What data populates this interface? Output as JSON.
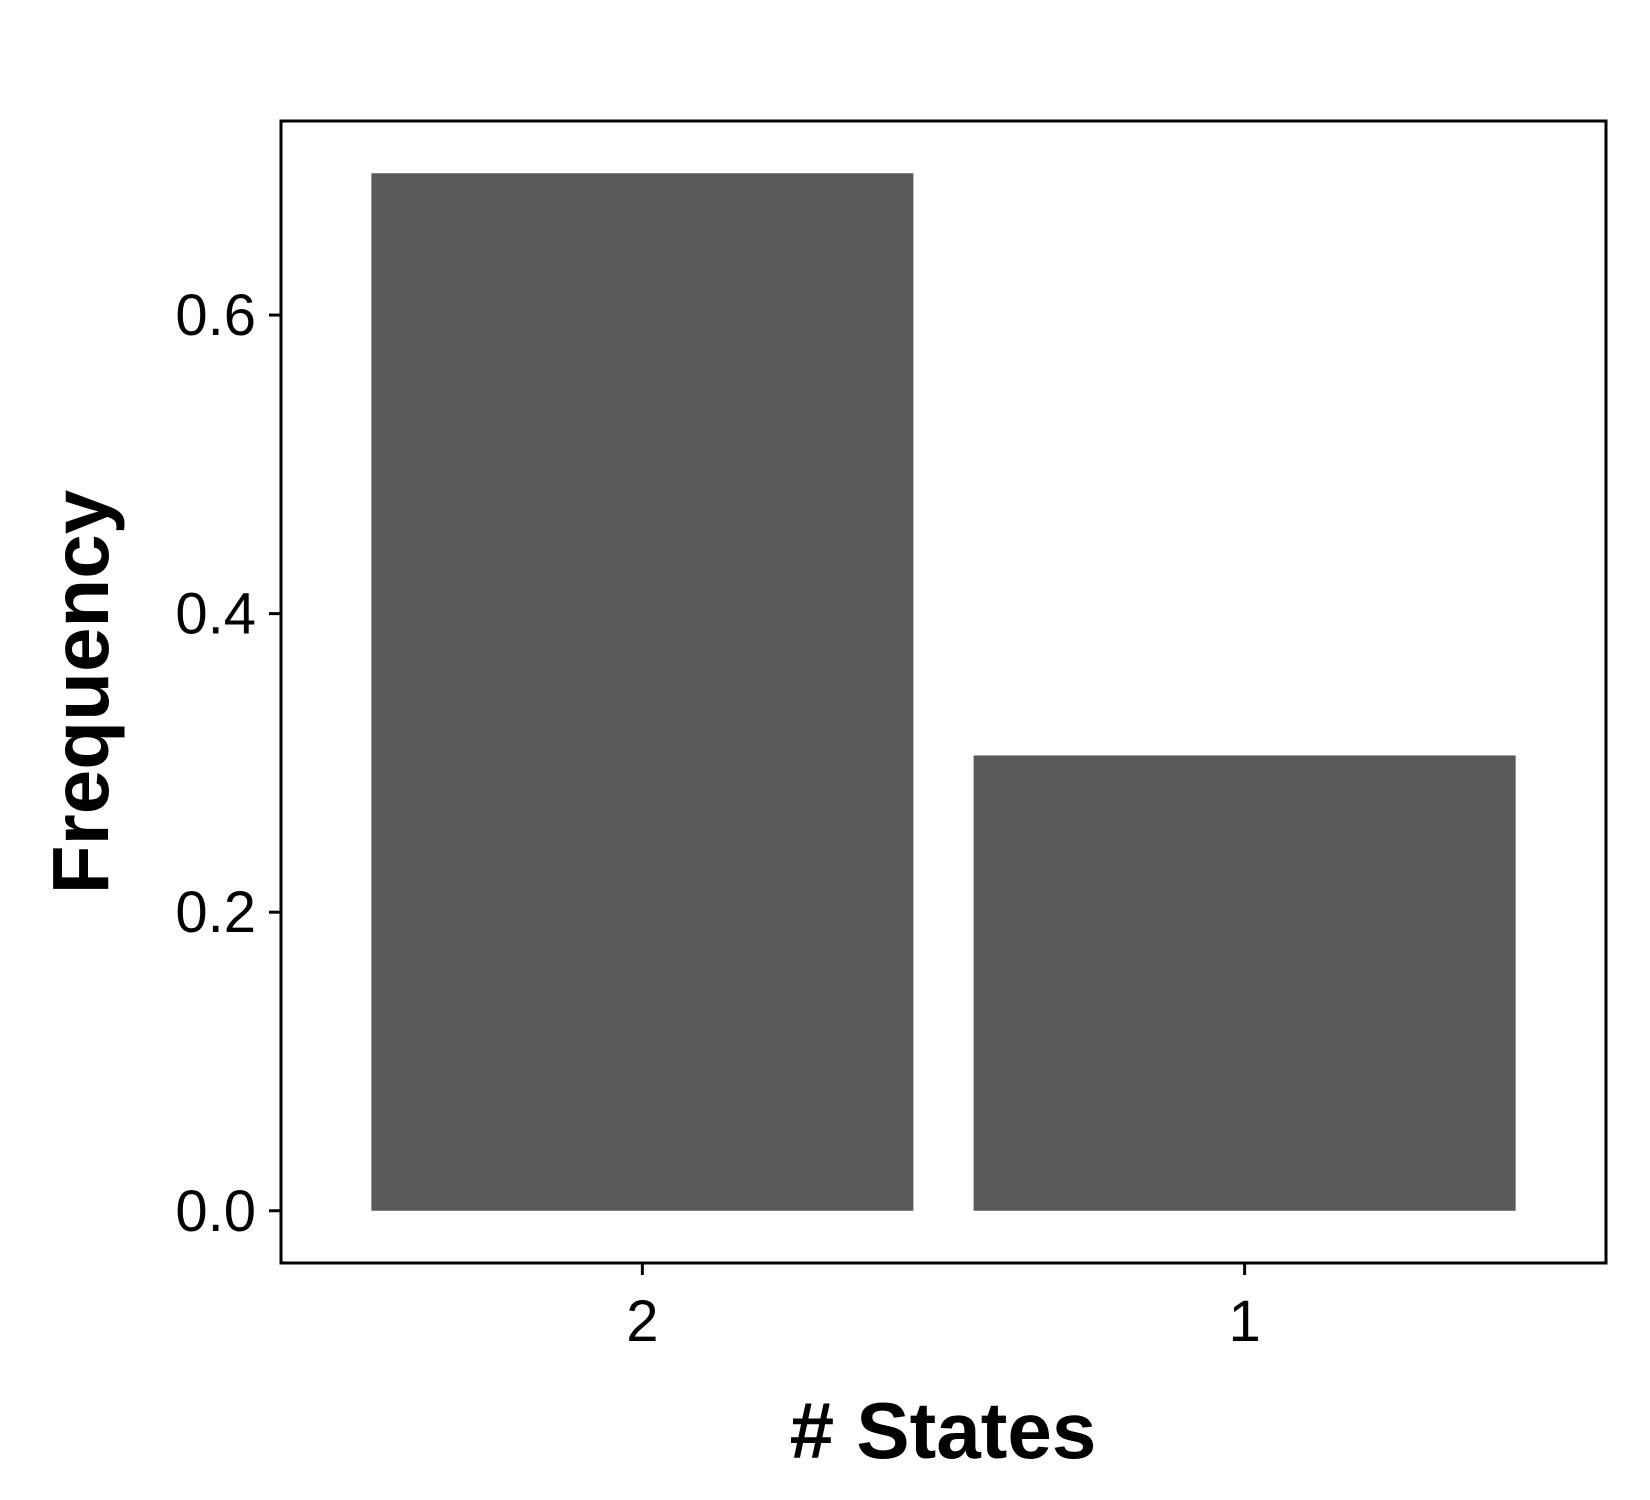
{
  "chart_data": {
    "type": "bar",
    "categories": [
      "2",
      "1"
    ],
    "values": [
      0.695,
      0.305
    ],
    "title": "",
    "xlabel": "# States",
    "ylabel": "Frequency",
    "ylim": [
      -0.035,
      0.73
    ],
    "yticks": [
      0.0,
      0.2,
      0.4,
      0.6
    ],
    "ytick_labels": [
      "0.0",
      "0.2",
      "0.4",
      "0.6"
    ],
    "grid": false,
    "bar_color": "#595959"
  }
}
